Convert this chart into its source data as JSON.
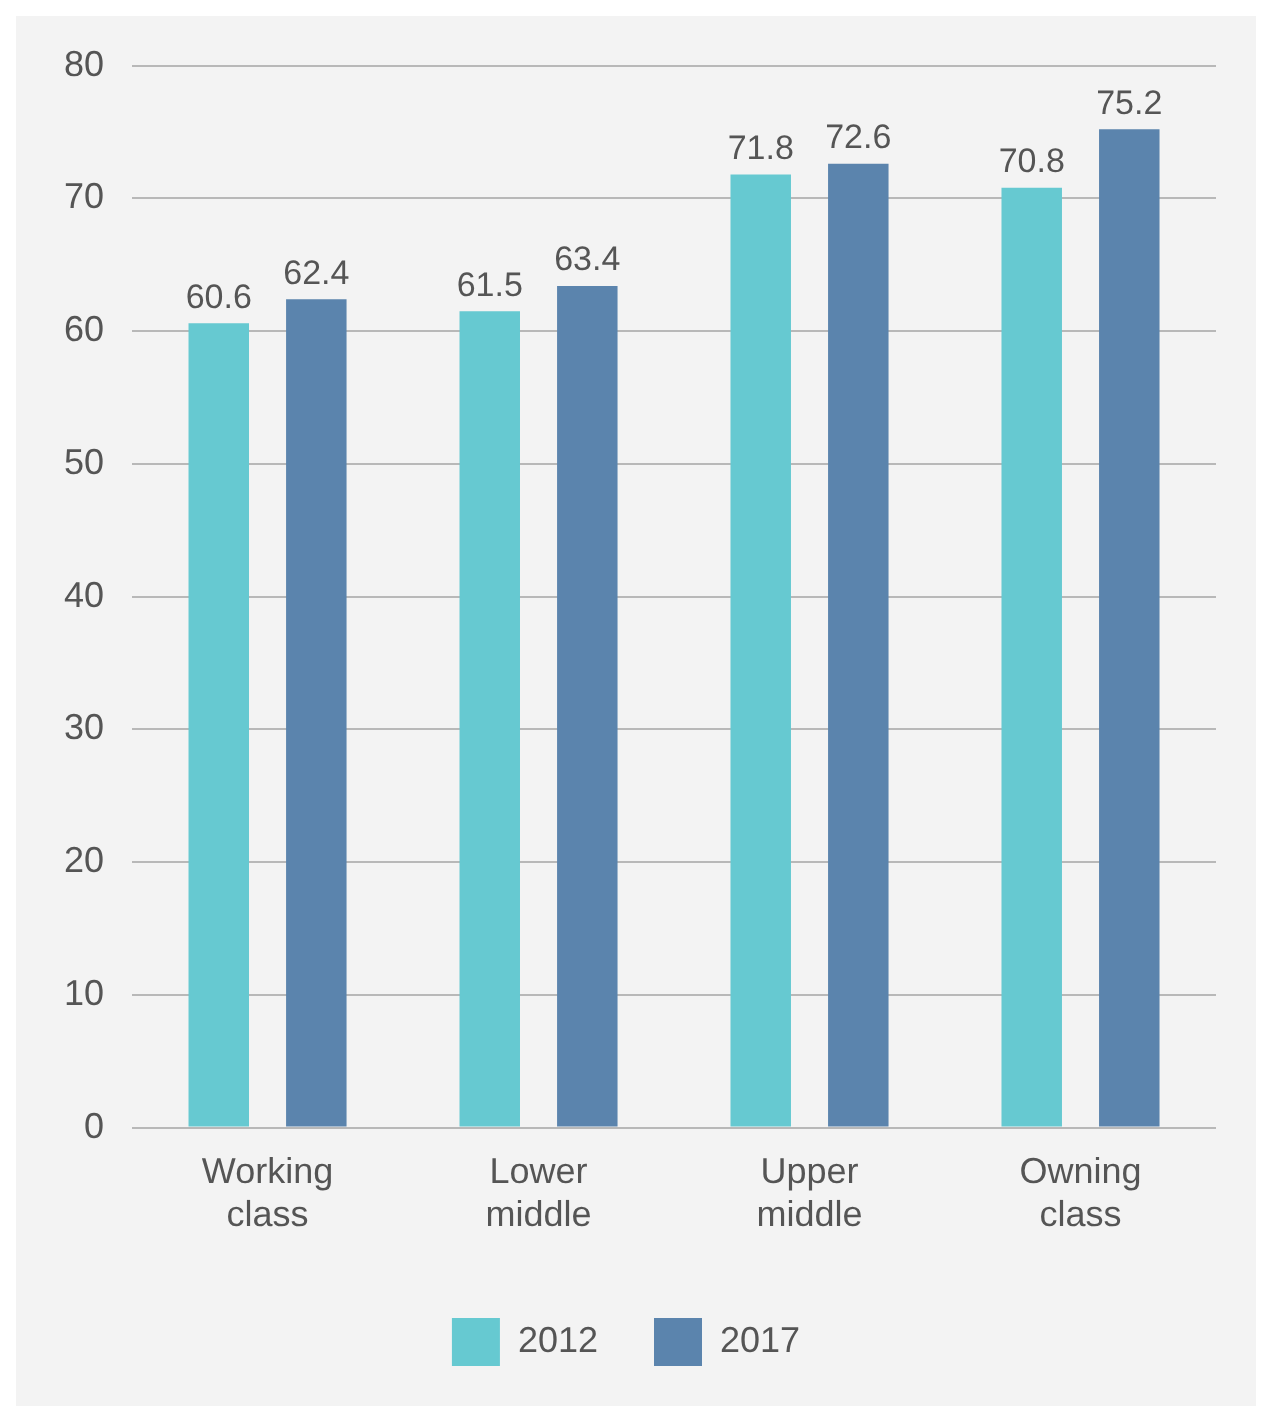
{
  "chart_data": {
    "type": "bar",
    "categories": [
      "Working class",
      "Lower middle",
      "Upper middle",
      "Owning class"
    ],
    "series": [
      {
        "name": "2012",
        "color": "#66c9d1",
        "values": [
          60.6,
          61.5,
          71.8,
          70.8
        ]
      },
      {
        "name": "2017",
        "color": "#5b84ad",
        "values": [
          62.4,
          63.4,
          72.6,
          75.2
        ]
      }
    ],
    "ylim": [
      0,
      80
    ],
    "yticks": [
      0,
      10,
      20,
      30,
      40,
      50,
      60,
      70,
      80
    ],
    "grid": "y",
    "legend": "bottom",
    "data_labels": true
  }
}
